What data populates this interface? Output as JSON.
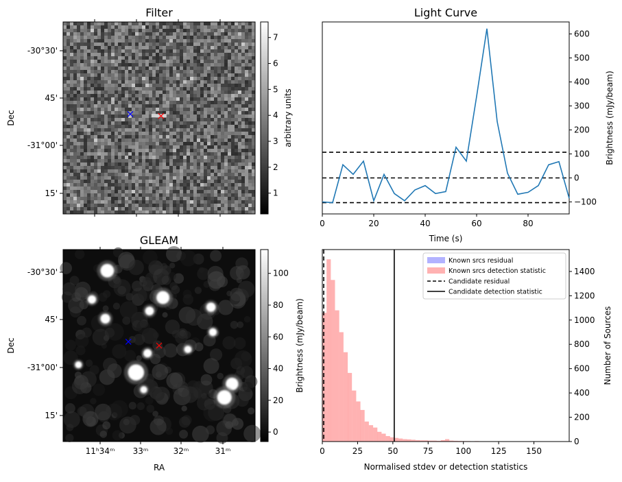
{
  "chart_data": [
    {
      "type": "heatmap",
      "title": "Filter",
      "xlabel": "",
      "ylabel": "Dec",
      "ytick_labels": [
        "-30°30'",
        "45'",
        "-31°00'",
        "15'"
      ],
      "colorbar": {
        "label": "arbitrary units",
        "ticks": [
          1,
          2,
          3,
          4,
          5,
          6,
          7
        ],
        "range": [
          0.2,
          7.6
        ],
        "cmap": "gray"
      },
      "markers": [
        {
          "symbol": "x",
          "color": "#0000ff",
          "ra_frac": 0.35,
          "dec_frac": 0.48
        },
        {
          "symbol": "x",
          "color": "#ff0000",
          "ra_frac": 0.51,
          "dec_frac": 0.49
        }
      ]
    },
    {
      "type": "line",
      "title": "Light Curve",
      "xlabel": "Time (s)",
      "ylabel": "Brightness (mJy/beam)",
      "xlim": [
        0,
        96
      ],
      "ylim": [
        -150,
        650
      ],
      "xticks": [
        0,
        20,
        40,
        60,
        80
      ],
      "yticks": [
        -100,
        0,
        100,
        200,
        300,
        400,
        500,
        600
      ],
      "series": [
        {
          "color": "#1f77b4",
          "x": [
            0,
            4,
            8,
            12,
            16,
            20,
            24,
            28,
            32,
            36,
            40,
            44,
            48,
            52,
            56,
            60,
            64,
            68,
            72,
            76,
            80,
            84,
            88,
            92,
            96
          ],
          "y": [
            -100,
            -103,
            55,
            15,
            70,
            -95,
            15,
            -65,
            -95,
            -50,
            -32,
            -65,
            -57,
            128,
            70,
            340,
            622,
            235,
            20,
            -68,
            -60,
            -32,
            55,
            68,
            -85
          ]
        }
      ],
      "hlines": [
        {
          "y": 107,
          "style": "dashed",
          "color": "#000000"
        },
        {
          "y": 0,
          "style": "dashed",
          "color": "#000000"
        },
        {
          "y": -103,
          "style": "dashed",
          "color": "#000000"
        }
      ]
    },
    {
      "type": "heatmap",
      "title": "GLEAM",
      "xlabel": "RA",
      "ylabel": "Dec",
      "xtick_labels": [
        "11ʰ34ᵐ",
        "33ᵐ",
        "32ᵐ",
        "31ᵐ"
      ],
      "ytick_labels": [
        "-30°30'",
        "45'",
        "-31°00'",
        "15'"
      ],
      "colorbar": {
        "label": "Brightness (mJy/beam)",
        "ticks": [
          0,
          20,
          40,
          60,
          80,
          100
        ],
        "range": [
          -6,
          115
        ],
        "cmap": "gray"
      },
      "markers": [
        {
          "symbol": "x",
          "color": "#0000ff",
          "ra_frac": 0.34,
          "dec_frac": 0.48
        },
        {
          "symbol": "x",
          "color": "#ff0000",
          "ra_frac": 0.5,
          "dec_frac": 0.5
        }
      ],
      "sources": [
        {
          "ra_frac": 0.23,
          "dec_frac": 0.11,
          "size": 1.0
        },
        {
          "ra_frac": 0.52,
          "dec_frac": 0.25,
          "size": 0.95
        },
        {
          "ra_frac": 0.15,
          "dec_frac": 0.26,
          "size": 0.45
        },
        {
          "ra_frac": 0.77,
          "dec_frac": 0.3,
          "size": 0.55
        },
        {
          "ra_frac": 0.45,
          "dec_frac": 0.32,
          "size": 0.5
        },
        {
          "ra_frac": 0.22,
          "dec_frac": 0.36,
          "size": 0.6
        },
        {
          "ra_frac": 0.78,
          "dec_frac": 0.43,
          "size": 0.4
        },
        {
          "ra_frac": 0.44,
          "dec_frac": 0.54,
          "size": 0.45
        },
        {
          "ra_frac": 0.38,
          "dec_frac": 0.64,
          "size": 1.25
        },
        {
          "ra_frac": 0.88,
          "dec_frac": 0.7,
          "size": 0.9
        },
        {
          "ra_frac": 0.84,
          "dec_frac": 0.77,
          "size": 1.1
        },
        {
          "ra_frac": 0.65,
          "dec_frac": 0.52,
          "size": 0.35
        },
        {
          "ra_frac": 0.42,
          "dec_frac": 0.73,
          "size": 0.3
        },
        {
          "ra_frac": 0.08,
          "dec_frac": 0.6,
          "size": 0.3
        }
      ]
    },
    {
      "type": "bar",
      "title": "",
      "xlabel": "Normalised stdev or detection statistics",
      "ylabel": "Number of Sources",
      "xlim": [
        0,
        175
      ],
      "ylim": [
        0,
        1580
      ],
      "xticks": [
        0,
        25,
        50,
        75,
        100,
        125,
        150
      ],
      "yticks": [
        0,
        200,
        400,
        600,
        800,
        1000,
        1200,
        1400
      ],
      "legend": {
        "placement": "top-right",
        "entries": [
          "Known srcs residual",
          "Known srcs detection statistic",
          "Candidate residual",
          "Candidate detection statistic"
        ]
      },
      "series": [
        {
          "name": "Known srcs residual",
          "color": "#0000ff",
          "alpha": 0.3,
          "bin_width": 3,
          "bin_starts": [],
          "counts": []
        },
        {
          "name": "Known srcs detection statistic",
          "color": "#ff0000",
          "alpha": 0.3,
          "bin_width": 3,
          "bin_starts": [
            0,
            3,
            6,
            9,
            12,
            15,
            18,
            21,
            24,
            27,
            30,
            33,
            36,
            39,
            42,
            45,
            48,
            51,
            54,
            57,
            60,
            63,
            66,
            69,
            72,
            75,
            78,
            81,
            84,
            87,
            90,
            93,
            96,
            99,
            102,
            105,
            108,
            111,
            114,
            117,
            120,
            123,
            126,
            129,
            132,
            135,
            138,
            141,
            144,
            147,
            150,
            153,
            156,
            159,
            162,
            165
          ],
          "counts": [
            1060,
            1500,
            1330,
            1080,
            900,
            735,
            565,
            420,
            330,
            260,
            165,
            135,
            115,
            80,
            65,
            45,
            35,
            30,
            25,
            20,
            18,
            15,
            12,
            10,
            10,
            8,
            8,
            6,
            12,
            20,
            8,
            6,
            5,
            4,
            4,
            3,
            4,
            3,
            2,
            2,
            3,
            2,
            2,
            2,
            2,
            2,
            2,
            2,
            2,
            2,
            2,
            1,
            1,
            1,
            1,
            1
          ]
        }
      ],
      "vlines": [
        {
          "name": "Candidate residual",
          "x": 1,
          "style": "dashed",
          "color": "#000000"
        },
        {
          "name": "Candidate detection statistic",
          "x": 51,
          "style": "solid",
          "color": "#000000"
        }
      ],
      "secondary_ylabel": "Brightness (mJy/beam)"
    }
  ]
}
